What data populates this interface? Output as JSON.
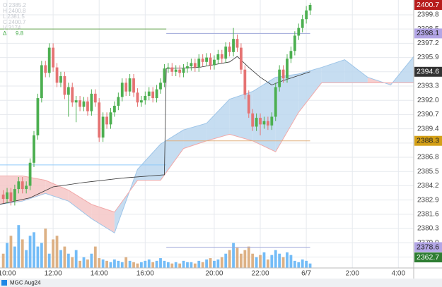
{
  "chart_data": {
    "type": "candlestick",
    "symbol": "MGC Aug24",
    "ohlc_info": [
      "O 2385.2",
      "H 2400.8",
      "L 2381.5",
      "C 2400.7",
      "V 3174"
    ],
    "delta": {
      "label": "Δ",
      "value": 9.8
    },
    "up_color": "#4caf50",
    "down_color": "#e57373",
    "volume_up_color": "#64b5f6",
    "volume_down_color": "#d9a878",
    "x": [
      -1,
      0,
      1,
      2,
      3,
      4,
      5,
      6,
      7,
      8,
      9,
      10,
      11,
      12,
      13,
      14,
      15,
      16,
      17,
      18,
      19,
      20,
      21,
      22,
      23,
      24,
      25,
      26,
      27,
      28,
      29,
      30,
      31,
      32,
      33,
      34,
      35,
      36,
      37,
      38,
      39,
      40,
      41,
      42,
      43,
      44,
      45,
      46,
      47,
      48,
      49,
      50,
      51,
      52,
      53,
      54,
      55,
      56,
      57,
      58,
      59,
      60,
      61,
      62,
      63,
      64,
      65,
      66,
      67,
      68,
      69,
      70,
      71,
      72,
      73,
      74,
      75,
      76,
      77,
      78,
      79
    ],
    "open": [
      2383.4,
      2383.0,
      2383.6,
      2382.8,
      2383.9,
      2384.6,
      2383.9,
      2384.2,
      2386.3,
      2388.8,
      2392.2,
      2395.2,
      2394.5,
      2396.8,
      2395.0,
      2393.6,
      2394.2,
      2392.5,
      2393.2,
      2391.8,
      2392.0,
      2391.4,
      2391.9,
      2391.0,
      2392.6,
      2391.8,
      2388.6,
      2390.5,
      2389.8,
      2390.9,
      2391.5,
      2392.3,
      2393.6,
      2392.8,
      2394.0,
      2392.7,
      2391.8,
      2392.0,
      2392.4,
      2392.8,
      2392.2,
      2393.0,
      2393.6,
      2394.9,
      2395.0,
      2394.6,
      2394.8,
      2394.5,
      2394.9,
      2395.1,
      2395.4,
      2395.0,
      2395.8,
      2395.5,
      2395.9,
      2395.2,
      2395.7,
      2396.2,
      2395.8,
      2396.9,
      2396.4,
      2397.6,
      2396.8,
      2394.8,
      2392.5,
      2390.8,
      2389.6,
      2390.4,
      2389.8,
      2390.1,
      2389.7,
      2390.5,
      2393.2,
      2394.8,
      2394.0,
      2395.8,
      2396.5,
      2397.9,
      2398.6,
      2399.4,
      2400.2
    ],
    "high": [
      2383.8,
      2384.0,
      2384.0,
      2384.3,
      2385.0,
      2385.0,
      2384.6,
      2386.7,
      2389.2,
      2392.6,
      2395.6,
      2395.6,
      2397.2,
      2397.2,
      2395.4,
      2394.6,
      2394.6,
      2393.6,
      2393.6,
      2392.4,
      2392.4,
      2392.3,
      2392.3,
      2393.0,
      2393.0,
      2392.2,
      2390.9,
      2390.9,
      2391.3,
      2391.9,
      2392.7,
      2394.0,
      2394.0,
      2394.4,
      2394.4,
      2393.1,
      2392.4,
      2392.8,
      2393.2,
      2393.2,
      2393.4,
      2394.0,
      2395.3,
      2395.4,
      2395.4,
      2395.2,
      2395.2,
      2395.3,
      2395.5,
      2395.8,
      2395.8,
      2396.2,
      2396.2,
      2396.3,
      2396.3,
      2396.1,
      2396.6,
      2396.6,
      2397.3,
      2397.3,
      2398.6,
      2398.0,
      2397.2,
      2395.2,
      2392.9,
      2391.2,
      2390.8,
      2390.8,
      2390.5,
      2390.5,
      2390.9,
      2393.6,
      2395.2,
      2395.2,
      2396.2,
      2396.9,
      2398.3,
      2399.0,
      2399.8,
      2400.6,
      2400.9
    ],
    "low": [
      2382.6,
      2382.6,
      2382.4,
      2382.4,
      2383.5,
      2383.5,
      2383.5,
      2383.8,
      2385.9,
      2388.4,
      2391.8,
      2394.1,
      2394.1,
      2394.6,
      2393.2,
      2393.2,
      2392.1,
      2390.5,
      2391.4,
      2390.0,
      2391.0,
      2391.0,
      2390.6,
      2390.6,
      2391.4,
      2388.2,
      2388.2,
      2389.4,
      2389.4,
      2390.5,
      2391.1,
      2391.9,
      2392.4,
      2392.4,
      2392.3,
      2391.4,
      2391.4,
      2391.6,
      2392.0,
      2391.8,
      2391.8,
      2392.6,
      2393.2,
      2394.5,
      2394.2,
      2394.2,
      2394.1,
      2394.1,
      2394.5,
      2394.7,
      2394.6,
      2394.6,
      2395.1,
      2395.1,
      2394.8,
      2394.8,
      2395.3,
      2395.4,
      2395.4,
      2396.0,
      2396.0,
      2396.4,
      2394.4,
      2392.1,
      2390.4,
      2389.2,
      2389.2,
      2388.8,
      2389.4,
      2389.3,
      2389.3,
      2390.1,
      2392.8,
      2393.6,
      2393.6,
      2395.4,
      2396.1,
      2397.5,
      2398.2,
      2399.0,
      2399.8
    ],
    "close": [
      2383.0,
      2383.6,
      2382.8,
      2383.9,
      2384.6,
      2383.9,
      2384.2,
      2386.3,
      2388.8,
      2392.2,
      2395.2,
      2394.5,
      2396.8,
      2395.0,
      2393.6,
      2394.2,
      2392.5,
      2393.2,
      2391.8,
      2392.0,
      2391.4,
      2391.9,
      2391.0,
      2392.6,
      2391.8,
      2388.6,
      2390.5,
      2389.8,
      2390.9,
      2391.5,
      2392.3,
      2393.6,
      2392.8,
      2394.0,
      2392.7,
      2391.8,
      2392.0,
      2392.4,
      2392.8,
      2392.2,
      2393.0,
      2393.6,
      2394.9,
      2395.0,
      2394.6,
      2394.8,
      2394.5,
      2394.9,
      2395.1,
      2395.4,
      2395.0,
      2395.8,
      2395.5,
      2395.9,
      2395.2,
      2395.7,
      2396.2,
      2395.8,
      2396.9,
      2396.4,
      2397.6,
      2396.8,
      2394.8,
      2392.5,
      2390.8,
      2389.6,
      2390.4,
      2389.8,
      2390.1,
      2389.7,
      2390.5,
      2393.2,
      2394.8,
      2394.0,
      2395.8,
      2396.5,
      2397.9,
      2398.6,
      2399.4,
      2400.2,
      2400.7
    ],
    "volume": [
      3200,
      5600,
      7200,
      4800,
      9600,
      6400,
      4000,
      7200,
      8000,
      4800,
      5600,
      8800,
      3200,
      6400,
      7200,
      4000,
      4800,
      3200,
      2400,
      4000,
      1600,
      2400,
      1900,
      3200,
      4800,
      2200,
      1900,
      1600,
      1300,
      1900,
      1600,
      1300,
      2400,
      1600,
      1300,
      1000,
      1300,
      1600,
      1900,
      1300,
      1600,
      2200,
      1600,
      1300,
      1000,
      1300,
      1000,
      1600,
      1300,
      1300,
      1000,
      1600,
      1300,
      1900,
      2200,
      1600,
      1900,
      2400,
      3200,
      4000,
      5600,
      4500,
      3200,
      4000,
      4800,
      3200,
      2400,
      2900,
      3500,
      1900,
      2900,
      4000,
      3200,
      2400,
      3500,
      2900,
      1600,
      1300,
      1900,
      1600,
      1000
    ],
    "cloud": {
      "x": [
        -2,
        4,
        10,
        16,
        22,
        28,
        34,
        40,
        46,
        52,
        58,
        64,
        70,
        76,
        82,
        88,
        94,
        100,
        106
      ],
      "span_a": [
        2382.5,
        2382.8,
        2383.5,
        2382.8,
        2381.2,
        2379.9,
        2385.7,
        2388.0,
        2389.3,
        2389.9,
        2392.1,
        2392.8,
        2394.1,
        2394.4,
        2395.0,
        2395.7,
        2394.1,
        2393.4,
        2396.0
      ],
      "span_b": [
        2385.1,
        2385.1,
        2384.7,
        2383.8,
        2382.5,
        2381.8,
        2384.7,
        2384.7,
        2387.6,
        2388.3,
        2388.9,
        2388.3,
        2387.3,
        2390.9,
        2393.6,
        2393.6,
        2393.6,
        2393.6,
        2393.6
      ],
      "bull_color": "#bcd7ee",
      "bear_color": "#f4c7c7"
    },
    "avg_line": {
      "x": [
        -2,
        6,
        12,
        20,
        30,
        41,
        41.5,
        50,
        58,
        60,
        63,
        66,
        69,
        72,
        79
      ],
      "values": [
        2382.5,
        2383.1,
        2384.1,
        2384.5,
        2384.9,
        2385.2,
        2394.9,
        2395.0,
        2395.5,
        2396.0,
        2395.0,
        2394.1,
        2393.4,
        2393.8,
        2394.6
      ],
      "color": "#333333"
    },
    "levels": [
      {
        "value": 2398.5,
        "from": -2,
        "to": 41.5,
        "color": "#6aa84f"
      },
      {
        "value": 2386.1,
        "from": -2,
        "to": 41.5,
        "color": "#90caf9"
      },
      {
        "value": 2398.1,
        "from": 41.5,
        "to": 79,
        "color": "#9fa8da"
      },
      {
        "value": 2388.3,
        "from": 41.5,
        "to": 79,
        "color": "#e0b080"
      },
      {
        "value": 2378.6,
        "from": 41.5,
        "to": 79,
        "color": "#9fa8da"
      }
    ],
    "tags": [
      {
        "value": 2400.7,
        "color": "#b71c1c",
        "text_color": "#ffffff"
      },
      {
        "value": 2398.1,
        "color": "#b3a6e6",
        "text_color": "#222222"
      },
      {
        "value": 2394.6,
        "color": "#333333",
        "text_color": "#ffffff"
      },
      {
        "value": 2388.3,
        "color": "#d4a017",
        "text_color": "#222222"
      },
      {
        "value": 2378.6,
        "color": "#b3a6e6",
        "text_color": "#222222"
      },
      {
        "value": 2362.7,
        "color": "#2e7d32",
        "text_color": "#ffffff",
        "axis": "y2"
      }
    ],
    "xlim": [
      -1.85,
      106
    ],
    "xticks": [
      {
        "value": 0,
        "label": "10:00"
      },
      {
        "value": 12,
        "label": "12:00"
      },
      {
        "value": 24,
        "label": "14:00"
      },
      {
        "value": 36,
        "label": "16:00"
      },
      {
        "value": 54,
        "label": "20:00"
      },
      {
        "value": 66,
        "label": "22:00"
      },
      {
        "value": 78,
        "label": "6/7"
      },
      {
        "value": 90,
        "label": "2:00"
      },
      {
        "value": 102,
        "label": "4:00"
      }
    ],
    "ylim": [
      2376.7,
      2401.15
    ],
    "yticks": [
      2399.8,
      2398.5,
      2397.2,
      2395.9,
      2394.6,
      2393.3,
      {
        "value": 2392,
        "label": "2392.0"
      },
      2390.7,
      2389.4,
      2388.1,
      2386.8,
      2385.5,
      2384.2,
      2382.9,
      2381.6,
      2380.3,
      {
        "value": 2379,
        "label": "2379.0"
      },
      2377.7
    ],
    "y2lim": [
      0,
      60000
    ],
    "grid": true
  }
}
